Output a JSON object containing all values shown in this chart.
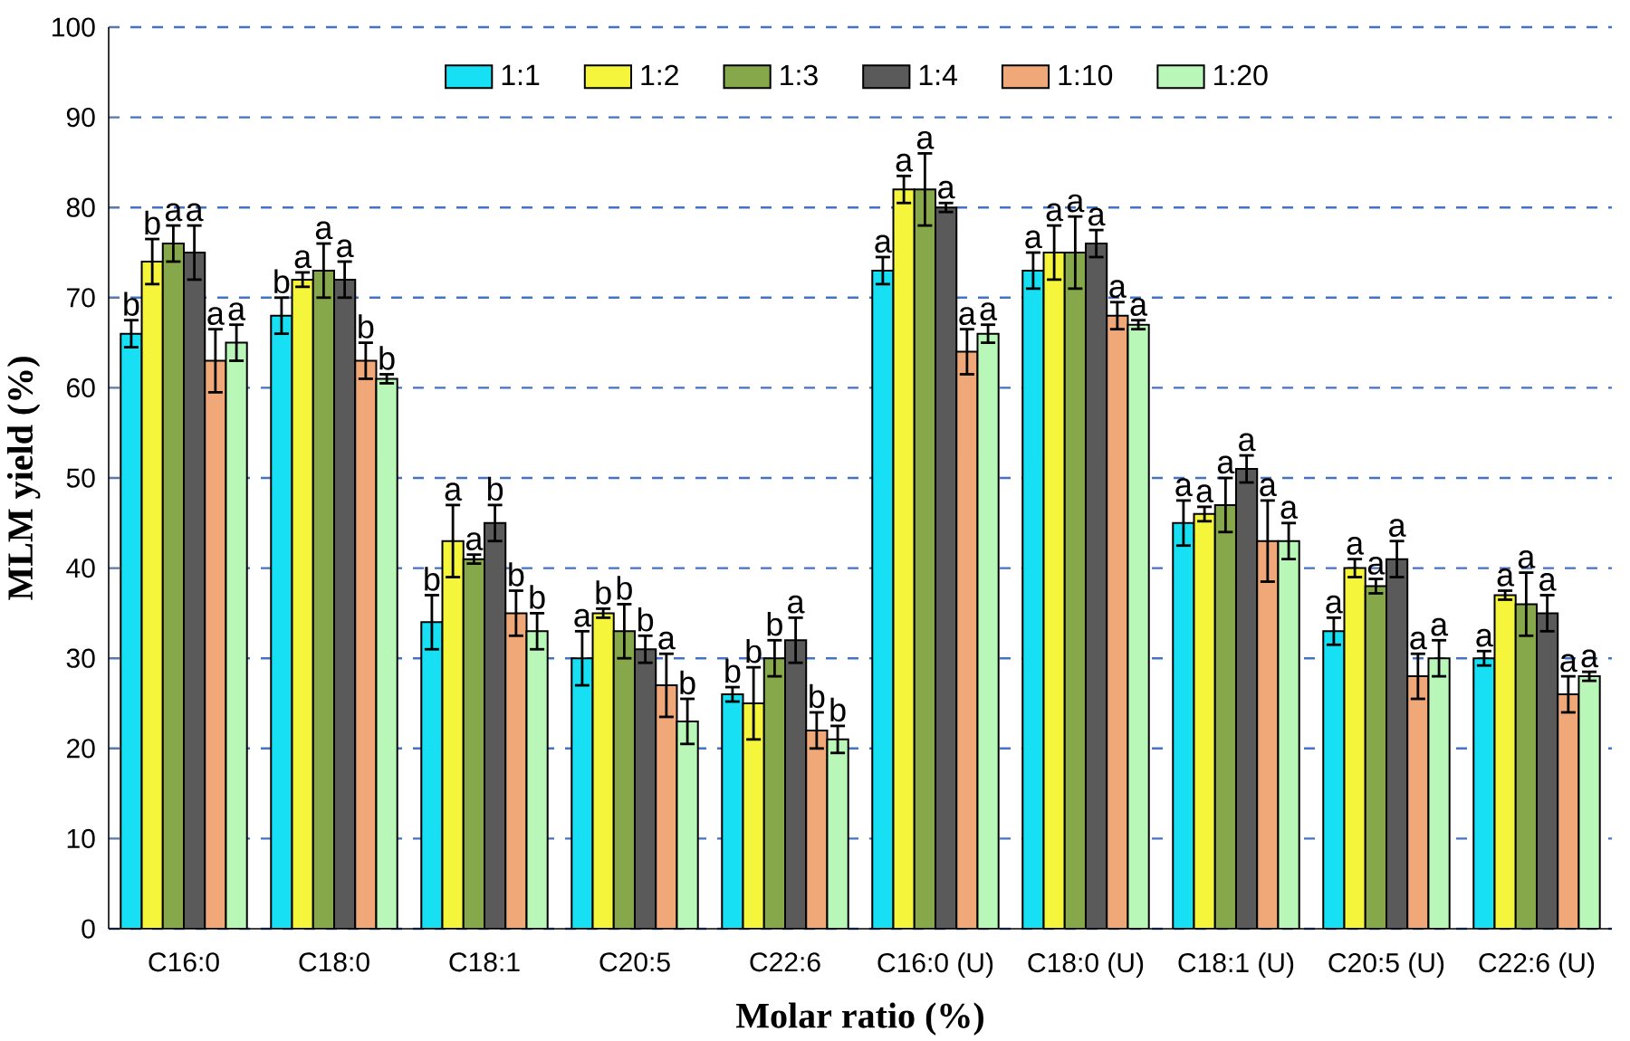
{
  "chart_data": {
    "type": "bar",
    "xlabel": "Molar ratio (%)",
    "ylabel": "MLM yield (%)",
    "categories": [
      "C16:0",
      "C18:0",
      "C18:1",
      "C20:5",
      "C22:6",
      "C16:0 (U)",
      "C18:0 (U)",
      "C18:1 (U)",
      "C20:5 (U)",
      "C22:6 (U)"
    ],
    "ylim": [
      0,
      100
    ],
    "yticks": [
      0,
      10,
      20,
      30,
      40,
      50,
      60,
      70,
      80,
      90,
      100
    ],
    "grid": "y",
    "legend": "top",
    "series": [
      {
        "name": "1:1",
        "color": "#17e0f5",
        "values": [
          66,
          68,
          34,
          30,
          26,
          73,
          73,
          45,
          33,
          30
        ],
        "errors": [
          1.5,
          2,
          3,
          3,
          0.8,
          1.5,
          2,
          2.5,
          1.5,
          0.8
        ],
        "value_labels": [
          "b",
          "b",
          "b",
          "a",
          "b",
          "a",
          "a",
          "a",
          "a",
          "a"
        ]
      },
      {
        "name": "1:2",
        "color": "#f5f53c",
        "values": [
          74,
          72,
          43,
          35,
          25,
          82,
          75,
          46,
          40,
          37
        ],
        "errors": [
          2.5,
          0.8,
          4,
          0.5,
          4,
          1.5,
          3,
          0.8,
          1,
          0.5
        ],
        "value_labels": [
          "b",
          "a",
          "a",
          "b",
          "b",
          "a",
          "a",
          "a",
          "a",
          "a"
        ]
      },
      {
        "name": "1:3",
        "color": "#86a84b",
        "values": [
          76,
          73,
          41,
          33,
          30,
          82,
          75,
          47,
          38,
          36
        ],
        "errors": [
          2,
          3,
          0.5,
          3,
          2,
          4,
          4,
          3,
          0.8,
          3.5
        ],
        "value_labels": [
          "a",
          "a",
          "a",
          "b",
          "b",
          "a",
          "a",
          "a",
          "a",
          "a"
        ]
      },
      {
        "name": "1:4",
        "color": "#5a5a5a",
        "values": [
          75,
          72,
          45,
          31,
          32,
          80,
          76,
          51,
          41,
          35
        ],
        "errors": [
          3,
          2,
          2,
          1.5,
          2.5,
          0.5,
          1.5,
          1.5,
          2,
          2
        ],
        "value_labels": [
          "a",
          "a",
          "b",
          "b",
          "a",
          "a",
          "a",
          "a",
          "a",
          "a"
        ]
      },
      {
        "name": "1:10",
        "color": "#f0a878",
        "values": [
          63,
          63,
          35,
          27,
          22,
          64,
          68,
          43,
          28,
          26
        ],
        "errors": [
          3.5,
          2,
          2.5,
          3.5,
          2,
          2.5,
          1.5,
          4.5,
          2.5,
          2
        ],
        "value_labels": [
          "a",
          "b",
          "b",
          "a",
          "b",
          "a",
          "a",
          "a",
          "a",
          "a"
        ]
      },
      {
        "name": "1:20",
        "color": "#b9f7b9",
        "values": [
          65,
          61,
          33,
          23,
          21,
          66,
          67,
          43,
          30,
          28
        ],
        "errors": [
          2,
          0.5,
          2,
          2.5,
          1.5,
          1,
          0.5,
          2,
          2,
          0.5
        ],
        "value_labels": [
          "a",
          "b",
          "b",
          "b",
          "b",
          "a",
          "a",
          "a",
          "a",
          "a"
        ]
      }
    ]
  }
}
